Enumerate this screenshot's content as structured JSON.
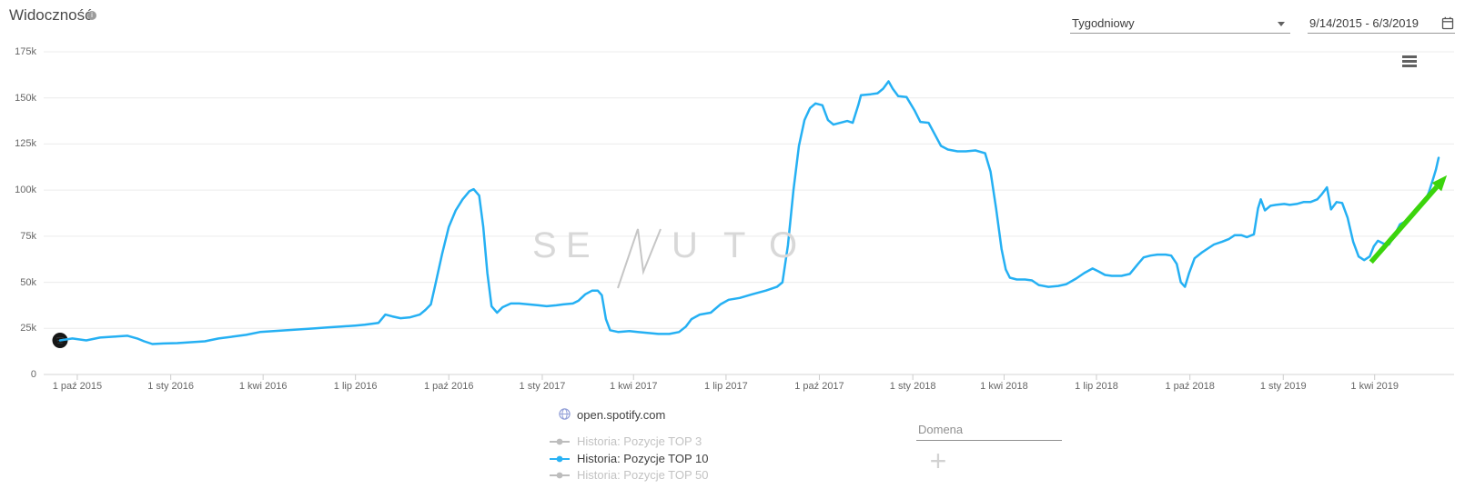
{
  "header": {
    "title": "Widoczność",
    "info_glyph": "i"
  },
  "toolbar": {
    "interval_select": {
      "value": "Tygodniowy"
    },
    "date_range": {
      "value": "9/14/2015 - 6/3/2019"
    }
  },
  "watermark": {
    "text": "SENUTO",
    "letters": [
      "S",
      "E",
      "U",
      "T",
      "O"
    ],
    "logo_mark": "zigzag-N"
  },
  "legend": {
    "domain": {
      "label": "open.spotify.com",
      "icon": "globe-icon"
    },
    "items": [
      {
        "label": "Historia: Pozycje TOP 3",
        "active": false,
        "color": "#bdbdbd"
      },
      {
        "label": "Historia: Pozycje TOP 10",
        "active": true,
        "color": "#29b2f4"
      },
      {
        "label": "Historia: Pozycje TOP 50",
        "active": false,
        "color": "#bdbdbd"
      }
    ]
  },
  "compare": {
    "domain_placeholder": "Domena",
    "add_button_glyph": "+"
  },
  "colors": {
    "series_blue": "#25b0f3",
    "trend_green": "#3bd40c",
    "gridline": "#ececec",
    "axis": "#d6d6d6",
    "label": "#666666"
  },
  "chart_data": {
    "type": "line",
    "title": "Widoczność",
    "interval": "Tygodniowy",
    "x_range": {
      "start": "2015-09-14",
      "end": "2019-06-03",
      "note": "point t values are fractions of this date range"
    },
    "ylim": [
      0,
      175000
    ],
    "values_unit": "thousands",
    "grid": "horizontal",
    "legend_position": "bottom",
    "y_ticks": [
      {
        "v": 0,
        "label": "0"
      },
      {
        "v": 25000,
        "label": "25k"
      },
      {
        "v": 50000,
        "label": "50k"
      },
      {
        "v": 75000,
        "label": "75k"
      },
      {
        "v": 100000,
        "label": "100k"
      },
      {
        "v": 125000,
        "label": "125k"
      },
      {
        "v": 150000,
        "label": "150k"
      },
      {
        "v": 175000,
        "label": "175k"
      }
    ],
    "x_ticks": [
      {
        "t": 0.0125,
        "label": "1 paź 2015"
      },
      {
        "t": 0.0803,
        "label": "1 sty 2016"
      },
      {
        "t": 0.1473,
        "label": "1 kwi 2016"
      },
      {
        "t": 0.2143,
        "label": "1 lip 2016"
      },
      {
        "t": 0.282,
        "label": "1 paź 2016"
      },
      {
        "t": 0.3498,
        "label": "1 sty 2017"
      },
      {
        "t": 0.416,
        "label": "1 kwi 2017"
      },
      {
        "t": 0.4831,
        "label": "1 lip 2017"
      },
      {
        "t": 0.5508,
        "label": "1 paź 2017"
      },
      {
        "t": 0.6186,
        "label": "1 sty 2018"
      },
      {
        "t": 0.6848,
        "label": "1 kwi 2018"
      },
      {
        "t": 0.7518,
        "label": "1 lip 2018"
      },
      {
        "t": 0.8196,
        "label": "1 paź 2018"
      },
      {
        "t": 0.8873,
        "label": "1 sty 2019"
      },
      {
        "t": 0.9536,
        "label": "1 kwi 2019"
      }
    ],
    "series": [
      {
        "name": "Historia: Pozycje TOP 3",
        "visible": false,
        "color": "#bdbdbd",
        "points": []
      },
      {
        "name": "Historia: Pozycje TOP 10",
        "visible": true,
        "color": "#25b0f3",
        "points": [
          [
            0,
            18.5
          ],
          [
            0.009,
            19.5
          ],
          [
            0.019,
            18.5
          ],
          [
            0.029,
            20
          ],
          [
            0.039,
            20.5
          ],
          [
            0.049,
            21
          ],
          [
            0.056,
            19.5
          ],
          [
            0.061,
            18
          ],
          [
            0.067,
            16.5
          ],
          [
            0.075,
            16.8
          ],
          [
            0.085,
            17
          ],
          [
            0.095,
            17.5
          ],
          [
            0.105,
            18
          ],
          [
            0.115,
            19.5
          ],
          [
            0.125,
            20.5
          ],
          [
            0.135,
            21.5
          ],
          [
            0.145,
            23
          ],
          [
            0.155,
            23.5
          ],
          [
            0.165,
            24
          ],
          [
            0.175,
            24.5
          ],
          [
            0.185,
            25
          ],
          [
            0.194,
            25.5
          ],
          [
            0.204,
            26
          ],
          [
            0.214,
            26.5
          ],
          [
            0.221,
            27
          ],
          [
            0.231,
            28
          ],
          [
            0.236,
            32.5
          ],
          [
            0.241,
            31.5
          ],
          [
            0.247,
            30.5
          ],
          [
            0.254,
            31
          ],
          [
            0.261,
            32.5
          ],
          [
            0.265,
            35
          ],
          [
            0.269,
            38
          ],
          [
            0.272,
            48
          ],
          [
            0.277,
            65
          ],
          [
            0.282,
            80
          ],
          [
            0.287,
            89
          ],
          [
            0.292,
            95
          ],
          [
            0.297,
            99.5
          ],
          [
            0.3,
            100.5
          ],
          [
            0.304,
            97
          ],
          [
            0.307,
            80
          ],
          [
            0.31,
            55
          ],
          [
            0.313,
            37
          ],
          [
            0.317,
            33.5
          ],
          [
            0.321,
            36.5
          ],
          [
            0.327,
            38.5
          ],
          [
            0.333,
            38.5
          ],
          [
            0.34,
            38
          ],
          [
            0.347,
            37.5
          ],
          [
            0.353,
            37
          ],
          [
            0.36,
            37.5
          ],
          [
            0.365,
            38
          ],
          [
            0.372,
            38.5
          ],
          [
            0.376,
            40
          ],
          [
            0.381,
            43.5
          ],
          [
            0.386,
            45.5
          ],
          [
            0.39,
            45.5
          ],
          [
            0.393,
            43
          ],
          [
            0.396,
            30
          ],
          [
            0.399,
            24
          ],
          [
            0.405,
            23
          ],
          [
            0.413,
            23.5
          ],
          [
            0.419,
            23
          ],
          [
            0.427,
            22.5
          ],
          [
            0.434,
            22
          ],
          [
            0.442,
            22
          ],
          [
            0.449,
            23
          ],
          [
            0.454,
            26
          ],
          [
            0.458,
            30
          ],
          [
            0.464,
            32.5
          ],
          [
            0.472,
            33.5
          ],
          [
            0.479,
            38
          ],
          [
            0.485,
            40.5
          ],
          [
            0.493,
            41.5
          ],
          [
            0.502,
            43.5
          ],
          [
            0.512,
            45.5
          ],
          [
            0.52,
            47.5
          ],
          [
            0.524,
            50
          ],
          [
            0.528,
            70
          ],
          [
            0.532,
            100
          ],
          [
            0.536,
            124
          ],
          [
            0.54,
            138
          ],
          [
            0.544,
            144.5
          ],
          [
            0.548,
            147
          ],
          [
            0.553,
            146
          ],
          [
            0.557,
            138
          ],
          [
            0.561,
            135.5
          ],
          [
            0.566,
            136.5
          ],
          [
            0.571,
            137.5
          ],
          [
            0.575,
            136.5
          ],
          [
            0.579,
            146
          ],
          [
            0.581,
            151.5
          ],
          [
            0.588,
            152
          ],
          [
            0.593,
            152.5
          ],
          [
            0.597,
            155
          ],
          [
            0.601,
            159
          ],
          [
            0.604,
            155
          ],
          [
            0.608,
            151
          ],
          [
            0.614,
            150.5
          ],
          [
            0.62,
            143
          ],
          [
            0.624,
            137
          ],
          [
            0.63,
            136.5
          ],
          [
            0.634,
            131
          ],
          [
            0.639,
            124
          ],
          [
            0.644,
            122
          ],
          [
            0.651,
            121
          ],
          [
            0.657,
            121
          ],
          [
            0.664,
            121.5
          ],
          [
            0.671,
            120
          ],
          [
            0.675,
            110
          ],
          [
            0.679,
            90
          ],
          [
            0.683,
            68
          ],
          [
            0.686,
            57
          ],
          [
            0.689,
            52.5
          ],
          [
            0.694,
            51.5
          ],
          [
            0.7,
            51.5
          ],
          [
            0.705,
            51
          ],
          [
            0.71,
            48.5
          ],
          [
            0.717,
            47.5
          ],
          [
            0.724,
            48
          ],
          [
            0.73,
            49
          ],
          [
            0.737,
            52
          ],
          [
            0.743,
            55
          ],
          [
            0.749,
            57.5
          ],
          [
            0.753,
            56
          ],
          [
            0.758,
            54
          ],
          [
            0.763,
            53.5
          ],
          [
            0.77,
            53.5
          ],
          [
            0.776,
            54.5
          ],
          [
            0.782,
            60
          ],
          [
            0.786,
            63.5
          ],
          [
            0.791,
            64.5
          ],
          [
            0.796,
            65
          ],
          [
            0.802,
            65
          ],
          [
            0.806,
            64.5
          ],
          [
            0.81,
            60
          ],
          [
            0.813,
            50
          ],
          [
            0.816,
            47.5
          ],
          [
            0.819,
            55
          ],
          [
            0.823,
            63
          ],
          [
            0.828,
            66
          ],
          [
            0.833,
            68.5
          ],
          [
            0.837,
            70.5
          ],
          [
            0.843,
            72
          ],
          [
            0.848,
            73.5
          ],
          [
            0.852,
            75.5
          ],
          [
            0.857,
            75.5
          ],
          [
            0.861,
            74.5
          ],
          [
            0.866,
            76
          ],
          [
            0.869,
            90
          ],
          [
            0.871,
            95
          ],
          [
            0.874,
            89
          ],
          [
            0.878,
            91.5
          ],
          [
            0.882,
            92
          ],
          [
            0.888,
            92.5
          ],
          [
            0.892,
            92
          ],
          [
            0.897,
            92.5
          ],
          [
            0.902,
            93.5
          ],
          [
            0.907,
            93.5
          ],
          [
            0.912,
            95
          ],
          [
            0.915,
            97.5
          ],
          [
            0.919,
            101.5
          ],
          [
            0.922,
            89.5
          ],
          [
            0.926,
            93.5
          ],
          [
            0.93,
            93
          ],
          [
            0.934,
            85
          ],
          [
            0.938,
            72
          ],
          [
            0.942,
            64
          ],
          [
            0.946,
            62
          ],
          [
            0.95,
            64
          ],
          [
            0.953,
            69.5
          ],
          [
            0.956,
            72.5
          ],
          [
            0.96,
            71
          ],
          [
            0.964,
            70.5
          ],
          [
            0.968,
            75.5
          ],
          [
            0.972,
            81.5
          ],
          [
            0.976,
            83
          ],
          [
            0.98,
            86
          ],
          [
            0.983,
            88.5
          ],
          [
            0.985,
            91
          ],
          [
            0.988,
            93
          ],
          [
            0.991,
            95.5
          ],
          [
            0.993,
            99
          ],
          [
            0.996,
            106
          ],
          [
            0.998,
            111
          ],
          [
            1,
            117.5
          ]
        ]
      },
      {
        "name": "Historia: Pozycje TOP 50",
        "visible": false,
        "color": "#bdbdbd",
        "points": []
      }
    ],
    "annotations": {
      "start_marker": {
        "t": 0,
        "v": 18.5,
        "icon": "spotify",
        "fill": "#161616"
      },
      "trend_arrow": {
        "from": {
          "t": 0.951,
          "v": 61
        },
        "to": {
          "t": 1.006,
          "v": 108
        },
        "color": "#3bd40c"
      }
    }
  }
}
